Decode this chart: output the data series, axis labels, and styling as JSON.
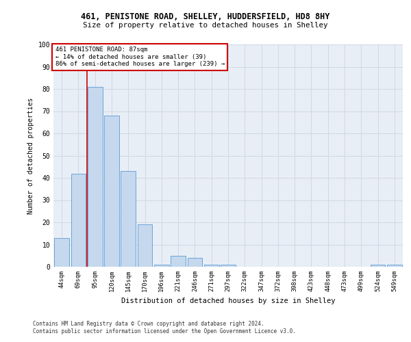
{
  "title1": "461, PENISTONE ROAD, SHELLEY, HUDDERSFIELD, HD8 8HY",
  "title2": "Size of property relative to detached houses in Shelley",
  "xlabel": "Distribution of detached houses by size in Shelley",
  "ylabel": "Number of detached properties",
  "categories": [
    "44sqm",
    "69sqm",
    "95sqm",
    "120sqm",
    "145sqm",
    "170sqm",
    "196sqm",
    "221sqm",
    "246sqm",
    "271sqm",
    "297sqm",
    "322sqm",
    "347sqm",
    "372sqm",
    "398sqm",
    "423sqm",
    "448sqm",
    "473sqm",
    "499sqm",
    "524sqm",
    "549sqm"
  ],
  "values": [
    13,
    42,
    81,
    68,
    43,
    19,
    1,
    5,
    4,
    1,
    1,
    0,
    0,
    0,
    0,
    0,
    0,
    0,
    0,
    1,
    1
  ],
  "bar_color": "#c5d8ed",
  "bar_edge_color": "#5b9bd5",
  "grid_color": "#d0d8e8",
  "background_color": "#e8eef5",
  "vline_x": 1.5,
  "vline_color": "#cc0000",
  "annotation_text": "461 PENISTONE ROAD: 87sqm\n← 14% of detached houses are smaller (39)\n86% of semi-detached houses are larger (239) →",
  "annotation_box_color": "#cc0000",
  "footer1": "Contains HM Land Registry data © Crown copyright and database right 2024.",
  "footer2": "Contains public sector information licensed under the Open Government Licence v3.0.",
  "ylim": [
    0,
    100
  ],
  "yticks": [
    0,
    10,
    20,
    30,
    40,
    50,
    60,
    70,
    80,
    90,
    100
  ]
}
